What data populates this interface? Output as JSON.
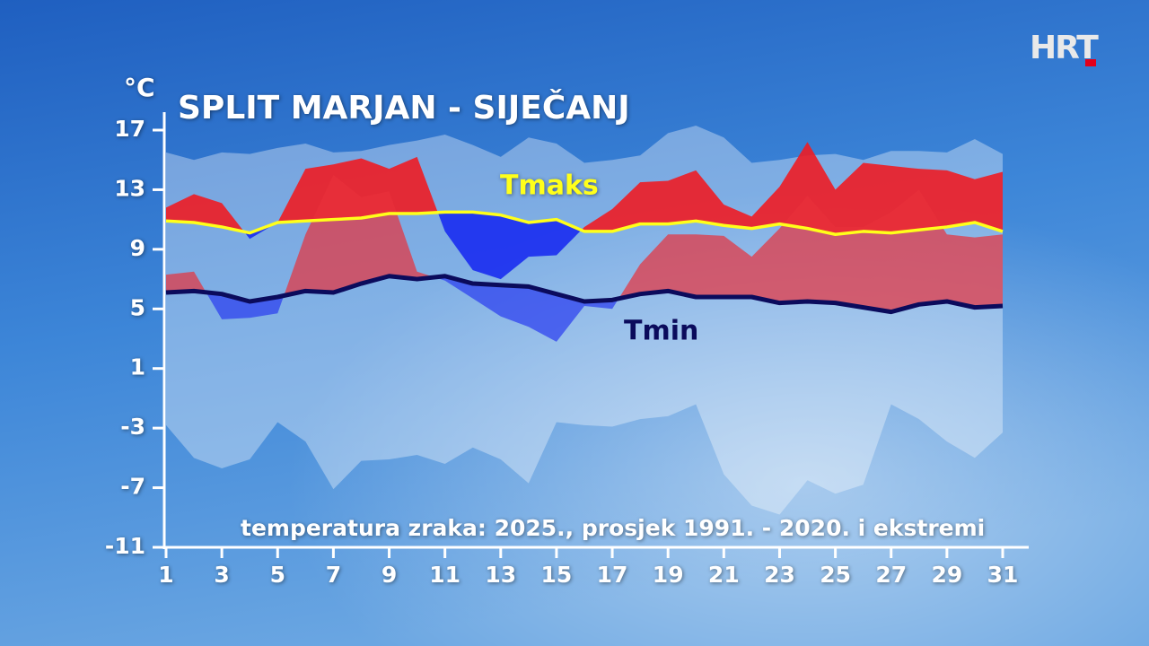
{
  "logo": "HRT",
  "chart_data": {
    "type": "area",
    "title": "SPLIT MARJAN - SIJEČANJ",
    "y_label": "°C",
    "caption": "temperatura zraka: 2025., prosjek 1991. - 2020. i ekstremi",
    "x": [
      1,
      2,
      3,
      4,
      5,
      6,
      7,
      8,
      9,
      10,
      11,
      12,
      13,
      14,
      15,
      16,
      17,
      18,
      19,
      20,
      21,
      22,
      23,
      24,
      25,
      26,
      27,
      28,
      29,
      30,
      31
    ],
    "xticks": [
      1,
      3,
      5,
      7,
      9,
      11,
      13,
      15,
      17,
      19,
      21,
      23,
      25,
      27,
      29,
      31
    ],
    "xlim": [
      1,
      31
    ],
    "ylim": [
      -11,
      17
    ],
    "yticks": [
      17,
      13,
      9,
      5,
      1,
      -3,
      -7,
      -11
    ],
    "series": [
      {
        "name": "Tmaks",
        "color": "#ffff1a",
        "values": [
          10.9,
          10.8,
          10.5,
          10.1,
          10.8,
          10.9,
          11,
          11.1,
          11.4,
          11.4,
          11.5,
          11.5,
          11.3,
          10.8,
          11,
          10.2,
          10.2,
          10.7,
          10.7,
          10.9,
          10.6,
          10.4,
          10.7,
          10.4,
          10,
          10.2,
          10.1,
          10.3,
          10.5,
          10.8,
          10.2
        ]
      },
      {
        "name": "Tmin",
        "color": "#0b0b5c",
        "values": [
          6.1,
          6.2,
          6,
          5.5,
          5.8,
          6.2,
          6.1,
          6.7,
          7.2,
          7,
          7.2,
          6.7,
          6.6,
          6.5,
          6,
          5.5,
          5.6,
          6,
          6.2,
          5.8,
          5.8,
          5.8,
          5.4,
          5.5,
          5.4,
          5.1,
          4.8,
          5.3,
          5.5,
          5.1,
          5.2
        ]
      }
    ],
    "year_series": [
      {
        "color_above": "#ee1c24",
        "color_below": "#1a2cf0",
        "values": [
          11.8,
          12.7,
          12.1,
          9.7,
          10.8,
          14.4,
          14.7,
          15.1,
          14.4,
          15.2,
          10.2,
          7.6,
          7,
          8.5,
          8.6,
          10.5,
          11.7,
          13.5,
          13.6,
          14.3,
          12,
          11.2,
          13.2,
          16.2,
          13,
          14.8,
          14.6,
          14.4,
          14.3,
          13.7,
          14.2
        ]
      },
      {
        "color_above": "#e8303a",
        "color_below": "#2a3cf0",
        "values": [
          7.3,
          7.5,
          4.3,
          4.4,
          4.7,
          10,
          14,
          12.5,
          12.9,
          7.5,
          6.9,
          5.7,
          4.5,
          3.8,
          2.8,
          5.2,
          5,
          8,
          10,
          10,
          9.9,
          8.5,
          10.4,
          12.6,
          10.5,
          10.5,
          11.5,
          13,
          10,
          9.8,
          10
        ]
      }
    ],
    "extremes": {
      "color": "#ffffff",
      "max": [
        15.5,
        15,
        15.5,
        15.4,
        15.8,
        16.1,
        15.5,
        15.6,
        16,
        16.3,
        16.7,
        16,
        15.2,
        16.5,
        16.1,
        14.8,
        15,
        15.3,
        16.8,
        17.3,
        16.5,
        14.8,
        15,
        15.3,
        15.4,
        15,
        15.6,
        15.6,
        15.5,
        16.4,
        15.4
      ],
      "min": [
        -2.8,
        -5,
        -5.7,
        -5.1,
        -2.6,
        -3.9,
        -7.1,
        -5.2,
        -5.1,
        -4.8,
        -5.4,
        -4.3,
        -5.1,
        -6.7,
        -2.6,
        -2.8,
        -2.9,
        -2.4,
        -2.2,
        -1.4,
        -6.1,
        -8.2,
        -8.8,
        -6.5,
        -7.4,
        -6.8,
        -1.4,
        -2.4,
        -3.9,
        -5,
        -3.3
      ]
    }
  }
}
